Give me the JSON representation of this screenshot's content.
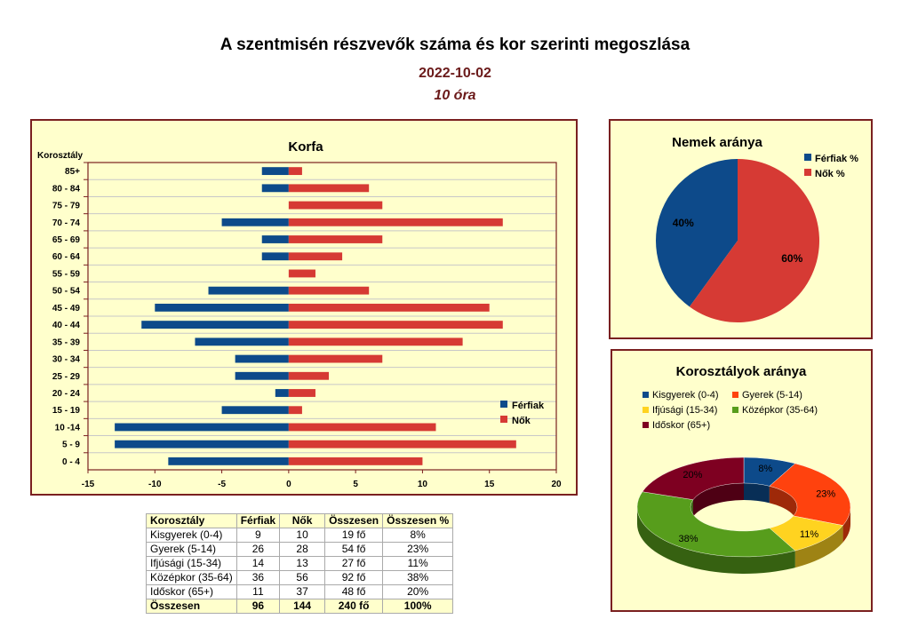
{
  "header": {
    "title": "A szentmisén részvevők száma és kor szerinti megoszlása",
    "date": "2022-10-02",
    "time": "10 óra"
  },
  "colors": {
    "ferfiak": "#0d4a8a",
    "nok": "#d63a34",
    "panel_bg": "#ffffcc",
    "panel_border": "#7a2020"
  },
  "chart_data": [
    {
      "type": "bar",
      "orientation": "horizontal",
      "title": "Korfa",
      "ylabel": "Korosztály",
      "categories": [
        "85+",
        "80 - 84",
        "75 - 79",
        "70 - 74",
        "65 - 69",
        "60 - 64",
        "55 - 59",
        "50 - 54",
        "45 - 49",
        "40 - 44",
        "35 - 39",
        "30 - 34",
        "25 - 29",
        "20 - 24",
        "15 - 19",
        "10 -14",
        "5 - 9",
        "0 - 4"
      ],
      "series": [
        {
          "name": "Férfiak",
          "color": "#0d4a8a",
          "values": [
            -2,
            -2,
            0,
            -5,
            -2,
            -2,
            0,
            -6,
            -10,
            -11,
            -7,
            -4,
            -4,
            -1,
            -5,
            -13,
            -13,
            -9
          ]
        },
        {
          "name": "Nők",
          "color": "#d63a34",
          "values": [
            1,
            6,
            7,
            16,
            7,
            4,
            2,
            6,
            15,
            16,
            13,
            7,
            3,
            2,
            1,
            11,
            17,
            10
          ]
        }
      ],
      "xlim": [
        -15,
        20
      ],
      "xticks": [
        "-15",
        "-10",
        "-5",
        "0",
        "5",
        "10",
        "15",
        "20"
      ],
      "grid": true,
      "legend": "right"
    },
    {
      "type": "pie",
      "title": "Nemek aránya",
      "labels": [
        "Férfiak %",
        "Nők %"
      ],
      "values": [
        40,
        60
      ],
      "data_labels": [
        "40%",
        "60%"
      ],
      "colors": [
        "#0d4a8a",
        "#d63a34"
      ],
      "legend": "top-right"
    },
    {
      "type": "pie",
      "variant": "3d-donut",
      "title": "Korosztályok aránya",
      "labels": [
        "Kisgyerek (0-4)",
        "Gyerek (5-14)",
        "Ifjúsági (15-34)",
        "Középkor (35-64)",
        "Időskor (65+)"
      ],
      "values": [
        8,
        23,
        11,
        38,
        20
      ],
      "data_labels": [
        "8%",
        "23%",
        "11%",
        "38%",
        "20%"
      ],
      "colors": [
        "#0d4a8a",
        "#ff420e",
        "#ffd320",
        "#579d1c",
        "#7e0021"
      ],
      "legend": "top"
    }
  ],
  "table": {
    "headers": [
      "Korosztály",
      "Férfiak",
      "Nők",
      "Összesen",
      "Összesen %"
    ],
    "rows": [
      [
        "Kisgyerek (0-4)",
        "9",
        "10",
        "19 fő",
        "8%"
      ],
      [
        "Gyerek (5-14)",
        "26",
        "28",
        "54 fő",
        "23%"
      ],
      [
        "Ifjúsági (15-34)",
        "14",
        "13",
        "27 fő",
        "11%"
      ],
      [
        "Középkor (35-64)",
        "36",
        "56",
        "92 fő",
        "38%"
      ],
      [
        "Időskor (65+)",
        "11",
        "37",
        "48 fő",
        "20%"
      ]
    ],
    "total": [
      "Összesen",
      "96",
      "144",
      "240 fő",
      "100%"
    ]
  }
}
